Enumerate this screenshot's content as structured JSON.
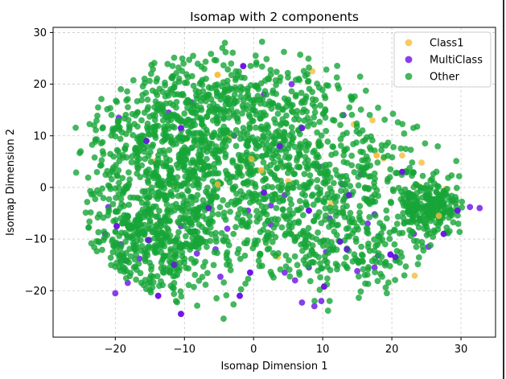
{
  "chart_data": {
    "type": "scatter",
    "title": "Isomap with 2 components",
    "xlabel": "Isomap Dimension 1",
    "ylabel": "Isomap Dimension 2",
    "xlim": [
      -29,
      35
    ],
    "ylim": [
      -29,
      31
    ],
    "xticks": [
      -20,
      -10,
      0,
      10,
      20,
      30
    ],
    "yticks": [
      -20,
      -10,
      0,
      10,
      20,
      30
    ],
    "grid": true,
    "legend_position": "top-right",
    "series": [
      {
        "name": "Class1",
        "color": "#f5bd3c",
        "points": [
          [
            -5.2,
            21.8
          ],
          [
            8.5,
            22.5
          ],
          [
            -14.5,
            5.0
          ],
          [
            9.3,
            8.5
          ],
          [
            -0.3,
            5.5
          ],
          [
            -9.7,
            9.3
          ],
          [
            -3.5,
            9.7
          ],
          [
            18.8,
            5.6
          ],
          [
            17.8,
            6.2
          ],
          [
            17.2,
            13.0
          ],
          [
            21.5,
            6.2
          ],
          [
            24.3,
            4.8
          ],
          [
            26.8,
            -5.5
          ],
          [
            27.8,
            -0.3
          ],
          [
            23.3,
            -17.1
          ],
          [
            -12.0,
            0.5
          ],
          [
            -5.2,
            0.6
          ],
          [
            -2.0,
            3.6
          ],
          [
            5.0,
            1.2
          ],
          [
            11.2,
            -3.2
          ],
          [
            1.1,
            3.3
          ],
          [
            23.8,
            0.4
          ],
          [
            14.5,
            12.2
          ],
          [
            3.5,
            -13.5
          ]
        ]
      },
      {
        "name": "MultiClass",
        "color": "#6a0ee6",
        "points": [
          [
            -1.5,
            23.5
          ],
          [
            -5.5,
            15.2
          ],
          [
            -13.5,
            -6.5
          ],
          [
            -10.5,
            -24.5
          ],
          [
            -19.2,
            -11.0
          ],
          [
            -18.5,
            -14.2
          ],
          [
            -11.5,
            -15.0
          ],
          [
            -8.2,
            -12.8
          ],
          [
            -4.8,
            -17.3
          ],
          [
            -2.0,
            -21.0
          ],
          [
            4.5,
            -16.5
          ],
          [
            7.0,
            -22.3
          ],
          [
            10.2,
            -19.2
          ],
          [
            8.8,
            -23.0
          ],
          [
            9.8,
            -22.0
          ],
          [
            12.5,
            -10.5
          ],
          [
            16.5,
            -7.0
          ],
          [
            18.0,
            -13.2
          ],
          [
            19.8,
            -13.0
          ],
          [
            23.2,
            -9.0
          ],
          [
            25.3,
            -11.5
          ],
          [
            27.5,
            -9.0
          ],
          [
            31.3,
            -3.8
          ],
          [
            32.7,
            -4.0
          ],
          [
            29.5,
            -4.5
          ],
          [
            25.0,
            -1.5
          ],
          [
            22.5,
            -2.0
          ],
          [
            21.5,
            3.0
          ],
          [
            17.5,
            -5.2
          ],
          [
            15.5,
            2.5
          ],
          [
            13.8,
            -1.5
          ],
          [
            12.8,
            0.6
          ],
          [
            11.0,
            -6.0
          ],
          [
            8.0,
            -4.5
          ],
          [
            4.5,
            -1.5
          ],
          [
            2.5,
            -7.2
          ],
          [
            1.5,
            -1.0
          ],
          [
            -0.8,
            -4.5
          ],
          [
            -3.8,
            -8.0
          ],
          [
            -6.5,
            -4.0
          ],
          [
            -8.5,
            -8.5
          ],
          [
            -10.5,
            -7.5
          ],
          [
            -15.2,
            -10.2
          ],
          [
            -16.5,
            -13.8
          ],
          [
            -21.0,
            -3.8
          ],
          [
            -19.8,
            -7.5
          ],
          [
            -21.5,
            -9.0
          ],
          [
            -19.5,
            13.5
          ],
          [
            -15.5,
            9.0
          ],
          [
            -12.3,
            14.5
          ],
          [
            -9.0,
            16.5
          ],
          [
            -10.5,
            11.5
          ],
          [
            -2.8,
            10.0
          ],
          [
            1.5,
            18.0
          ],
          [
            -0.5,
            -16.5
          ],
          [
            6.0,
            -18.0
          ],
          [
            -5.5,
            -12.0
          ],
          [
            -13.8,
            -21.0
          ],
          [
            -20.0,
            -20.5
          ],
          [
            -18.2,
            -18.5
          ],
          [
            3.8,
            8.0
          ],
          [
            13.0,
            14.0
          ],
          [
            5.5,
            20.0
          ],
          [
            7.0,
            11.5
          ],
          [
            9.5,
            4.0
          ],
          [
            2.5,
            -3.5
          ],
          [
            20.5,
            -13.5
          ],
          [
            17.5,
            -15.5
          ],
          [
            15.0,
            -16.2
          ],
          [
            13.5,
            -12.0
          ],
          [
            10.5,
            -12.5
          ],
          [
            8.0,
            -15.5
          ]
        ]
      },
      {
        "name": "Other",
        "color": "#17a537",
        "count": 2400,
        "clusters": [
          {
            "cx": -12.0,
            "cy": 5.0,
            "sx": 7.0,
            "sy": 7.5,
            "n": 560
          },
          {
            "cx": -14.5,
            "cy": -11.0,
            "sx": 4.5,
            "sy": 5.0,
            "n": 380
          },
          {
            "cx": -6.5,
            "cy": 16.0,
            "sx": 6.0,
            "sy": 4.5,
            "n": 260
          },
          {
            "cx": 1.0,
            "cy": -4.0,
            "sx": 7.0,
            "sy": 8.0,
            "n": 360
          },
          {
            "cx": 5.0,
            "cy": 13.0,
            "sx": 6.0,
            "sy": 6.0,
            "n": 250
          },
          {
            "cx": 14.5,
            "cy": 0.5,
            "sx": 6.5,
            "sy": 6.5,
            "n": 240
          },
          {
            "cx": 14.5,
            "cy": -13.0,
            "sx": 5.0,
            "sy": 4.0,
            "n": 130
          },
          {
            "cx": 25.5,
            "cy": -3.5,
            "sx": 2.4,
            "sy": 2.4,
            "n": 220
          }
        ],
        "xlim": [
          -26.5,
          30.5
        ],
        "ylim": [
          -26.2,
          28.8
        ]
      }
    ]
  }
}
